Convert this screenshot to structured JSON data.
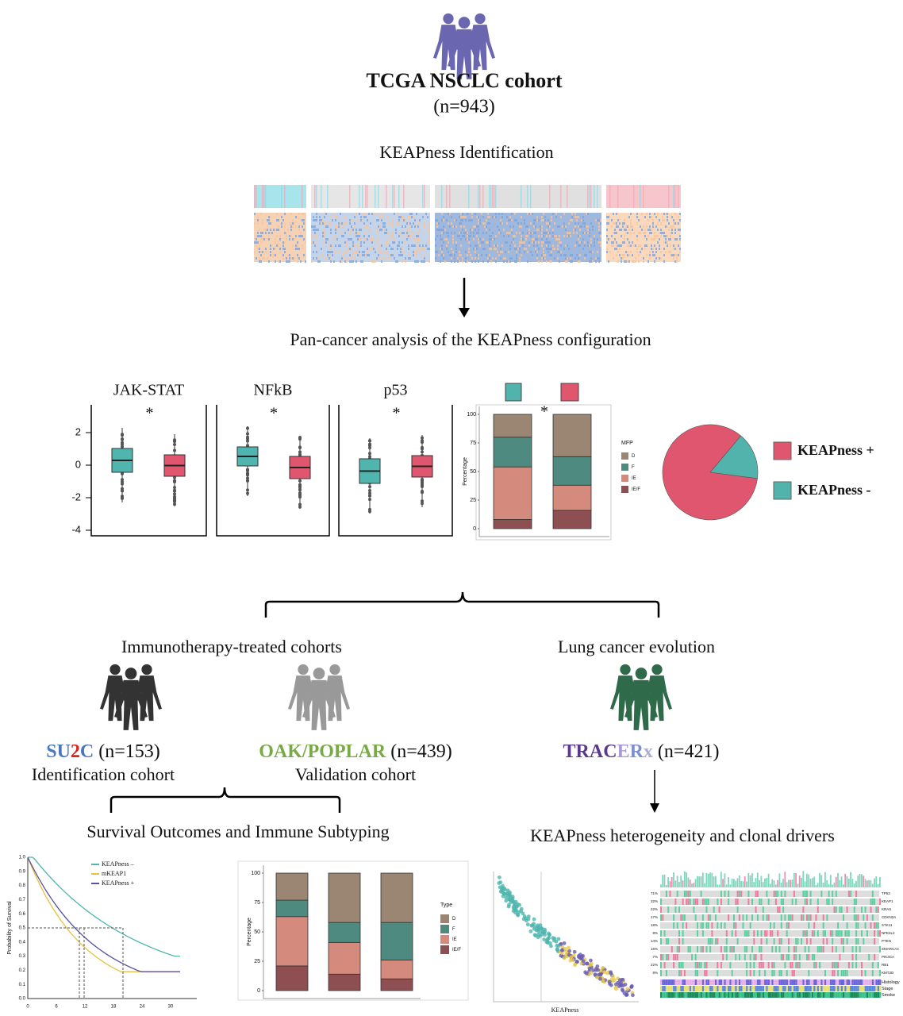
{
  "header": {
    "title": "TCGA NSCLC cohort",
    "subtitle": "(n=943)"
  },
  "steps": {
    "identification": "KEAPness Identification",
    "pan_cancer": "Pan-cancer analysis of the KEAPness configuration"
  },
  "boxplots": {
    "panels": [
      {
        "title": "JAK-STAT",
        "sig": "*"
      },
      {
        "title": "NFkB",
        "sig": "*"
      },
      {
        "title": "p53",
        "sig": "*"
      }
    ],
    "yticks": [
      "2",
      "0",
      "-2",
      "-4"
    ]
  },
  "mfp_bar": {
    "type": "bar",
    "sig": "*",
    "ylabel": "Percentage",
    "legend_title": "MFP",
    "ylim": [
      0,
      100
    ],
    "yticks": [
      0,
      25,
      50,
      75,
      100
    ],
    "series": [
      {
        "name": "IE/F",
        "color": "#8e4f53",
        "values": [
          8,
          16
        ]
      },
      {
        "name": "IE",
        "color": "#d48a7c",
        "values": [
          46,
          22
        ]
      },
      {
        "name": "F",
        "color": "#4f8a80",
        "values": [
          26,
          25
        ]
      },
      {
        "name": "D",
        "color": "#9a8672",
        "values": [
          20,
          37
        ]
      }
    ]
  },
  "pie": {
    "type": "pie",
    "series": [
      {
        "name": "KEAPness +",
        "color": "#e0566e",
        "value": 84
      },
      {
        "name": "KEAPness -",
        "color": "#52b3ad",
        "value": 16
      }
    ]
  },
  "branches": {
    "left": "Immunotherapy-treated cohorts",
    "right": "Lung cancer evolution"
  },
  "cohorts": {
    "su2c": {
      "name_parts": [
        "SU",
        "2",
        "C"
      ],
      "n": "(n=153)",
      "role": "Identification cohort"
    },
    "oak": {
      "name": "OAK/POPLAR",
      "n": "(n=439)",
      "role": "Validation cohort"
    },
    "tracerx": {
      "name_parts": [
        "TRAC",
        "E",
        "R",
        "x"
      ],
      "n": "(n=421)"
    }
  },
  "outcomes": {
    "left": "Survival Outcomes and Immune Subtyping",
    "right": "KEAPness heterogeneity and clonal drivers"
  },
  "km": {
    "ylabel": "Probability of Survival",
    "yticks": [
      "1.0",
      "0.9",
      "0.8",
      "0.7",
      "0.6",
      "0.5",
      "0.4",
      "0.3",
      "0.2",
      "0.1",
      "0.0"
    ],
    "xticks": [
      "0",
      "6",
      "12",
      "18",
      "24",
      "30"
    ],
    "legend": [
      "KEAPness –",
      "mKEAP1",
      "KEAPness +"
    ]
  },
  "immune_bar": {
    "type": "bar",
    "ylabel": "Percentage",
    "legend_title": "Type",
    "ylim": [
      0,
      100
    ],
    "yticks": [
      0,
      25,
      50,
      75,
      100
    ],
    "series": [
      {
        "name": "IE/F",
        "color": "#8e4f53",
        "values": [
          21,
          14,
          10
        ]
      },
      {
        "name": "IE",
        "color": "#d48a7c",
        "values": [
          42,
          27,
          16
        ]
      },
      {
        "name": "F",
        "color": "#4f8a80",
        "values": [
          14,
          17,
          32
        ]
      },
      {
        "name": "D",
        "color": "#9a8672",
        "values": [
          23,
          42,
          42
        ]
      }
    ]
  },
  "waterfall": {
    "xlabel": "KEAPness"
  },
  "oncoplot": {
    "genes": [
      "TP53",
      "KEAP1",
      "KRAS",
      "CDKN2A",
      "STK11",
      "NFE2L2",
      "PTEN",
      "SMARCA4",
      "PIK3CA",
      "RB1",
      "KMT2D"
    ],
    "percents": [
      "71%",
      "32%",
      "22%",
      "17%",
      "18%",
      "8%",
      "14%",
      "16%",
      "7%",
      "22%",
      "9%"
    ],
    "annotations": [
      "Histology",
      "Stage",
      "Smoke"
    ]
  }
}
